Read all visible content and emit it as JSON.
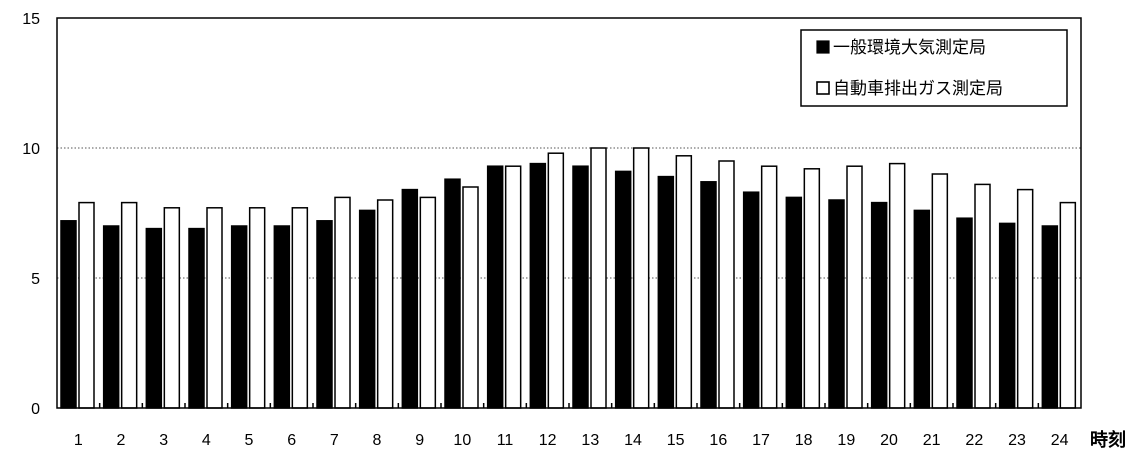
{
  "chart_data": {
    "type": "bar",
    "title": "",
    "xlabel": "時刻",
    "ylabel": "",
    "ylim": [
      0,
      15
    ],
    "yticks": [
      0,
      5,
      10,
      15
    ],
    "grid": "horizontal dotted",
    "legend_position": "top-right",
    "categories": [
      "1",
      "2",
      "3",
      "4",
      "5",
      "6",
      "7",
      "8",
      "9",
      "10",
      "11",
      "12",
      "13",
      "14",
      "15",
      "16",
      "17",
      "18",
      "19",
      "20",
      "21",
      "22",
      "23",
      "24"
    ],
    "series": [
      {
        "name": "一般環境大気測定局",
        "legend_marker": "■",
        "color": "#000000",
        "values": [
          7.2,
          7.0,
          6.9,
          6.9,
          7.0,
          7.0,
          7.2,
          7.6,
          8.4,
          8.8,
          9.3,
          9.4,
          9.3,
          9.1,
          8.9,
          8.7,
          8.3,
          8.1,
          8.0,
          7.9,
          7.6,
          7.3,
          7.1,
          7.0
        ]
      },
      {
        "name": "自動車排出ガス測定局",
        "legend_marker": "□",
        "color": "#ffffff",
        "values": [
          7.9,
          7.9,
          7.7,
          7.7,
          7.7,
          7.7,
          8.1,
          8.0,
          8.1,
          8.5,
          9.3,
          9.8,
          10.0,
          10.0,
          9.7,
          9.5,
          9.3,
          9.2,
          9.3,
          9.4,
          9.0,
          8.6,
          8.4,
          7.9
        ]
      }
    ]
  }
}
